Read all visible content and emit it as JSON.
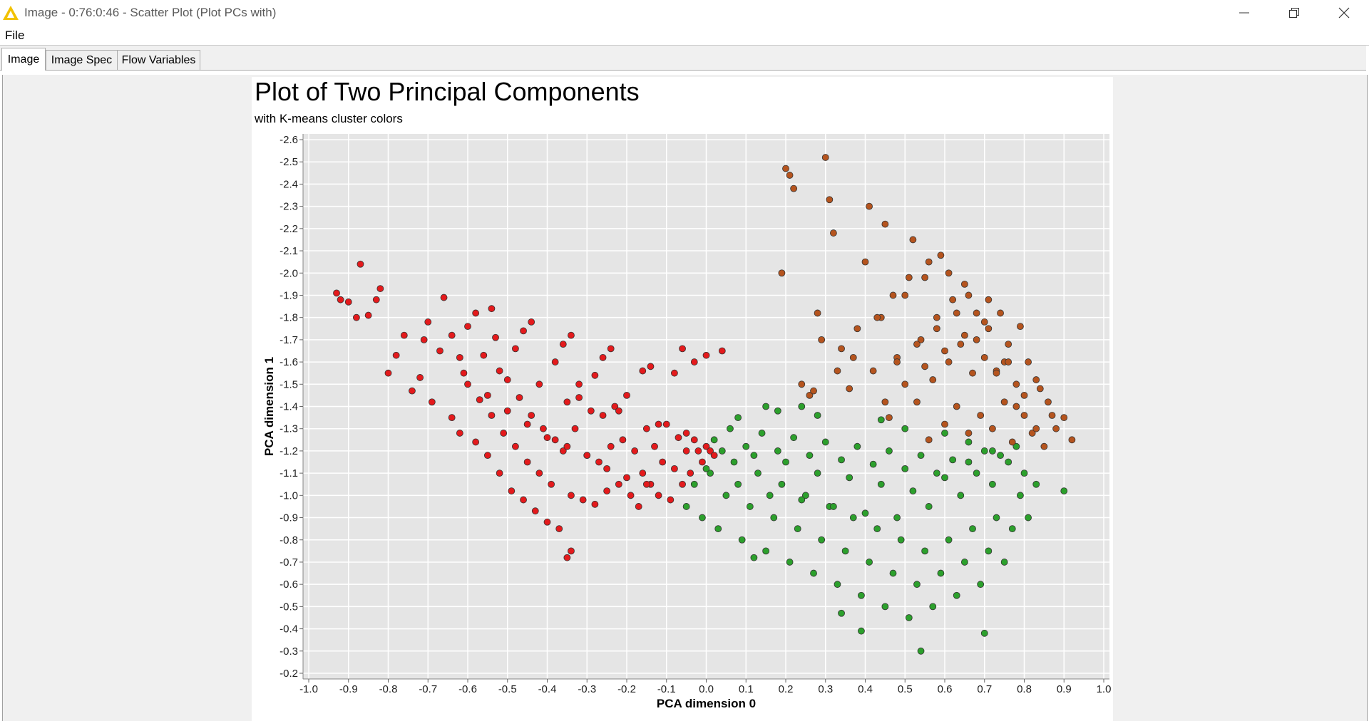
{
  "window": {
    "title": "Image - 0:76:0:46 - Scatter Plot (Plot PCs with)",
    "icon": "warning-triangle-icon",
    "controls": [
      "minimize-icon",
      "restore-icon",
      "close-icon"
    ]
  },
  "menu": {
    "file_label": "File"
  },
  "tabs": [
    {
      "label": "Image",
      "active": true
    },
    {
      "label": "Image Spec",
      "active": false
    },
    {
      "label": "Flow Variables",
      "active": false
    }
  ],
  "colors": {
    "cluster_red": "#e41a1c",
    "cluster_green": "#2ca02c",
    "cluster_brown": "#b5541e",
    "plot_background": "#e5e5e5"
  },
  "chart_data": {
    "type": "scatter",
    "title": "Plot of Two Principal Components",
    "subtitle": "with K-means cluster colors",
    "xlabel": "PCA dimension 0",
    "ylabel": "PCA dimension 1",
    "xlim": [
      -1.0,
      1.0
    ],
    "ylim": [
      -2.6,
      -0.2
    ],
    "x_ticks": [
      "-1.0",
      "-0.9",
      "-0.8",
      "-0.7",
      "-0.6",
      "-0.5",
      "-0.4",
      "-0.3",
      "-0.2",
      "-0.1",
      "0.0",
      "0.1",
      "0.2",
      "0.3",
      "0.4",
      "0.5",
      "0.6",
      "0.7",
      "0.8",
      "0.9",
      "1.0"
    ],
    "y_ticks": [
      "-0.2",
      "-0.3",
      "-0.4",
      "-0.5",
      "-0.6",
      "-0.7",
      "-0.8",
      "-0.9",
      "-1.0",
      "-1.1",
      "-1.2",
      "-1.3",
      "-1.4",
      "-1.5",
      "-1.6",
      "-1.7",
      "-1.8",
      "-1.9",
      "-2.0",
      "-2.1",
      "-2.2",
      "-2.3",
      "-2.4",
      "-2.5",
      "-2.6"
    ],
    "grid": true,
    "series": [
      {
        "color": "#e41a1c",
        "x": [
          -0.93,
          -0.92,
          -0.9,
          -0.87,
          -0.85,
          -0.82,
          -0.8,
          -0.78,
          -0.76,
          -0.74,
          -0.72,
          -0.71,
          -0.69,
          -0.67,
          -0.66,
          -0.64,
          -0.62,
          -0.61,
          -0.6,
          -0.58,
          -0.57,
          -0.56,
          -0.55,
          -0.54,
          -0.53,
          -0.52,
          -0.51,
          -0.5,
          -0.49,
          -0.48,
          -0.47,
          -0.46,
          -0.45,
          -0.44,
          -0.43,
          -0.42,
          -0.41,
          -0.4,
          -0.39,
          -0.38,
          -0.37,
          -0.36,
          -0.35,
          -0.34,
          -0.33,
          -0.32,
          -0.31,
          -0.3,
          -0.29,
          -0.28,
          -0.27,
          -0.26,
          -0.25,
          -0.24,
          -0.23,
          -0.22,
          -0.21,
          -0.2,
          -0.19,
          -0.18,
          -0.17,
          -0.16,
          -0.15,
          -0.14,
          -0.13,
          -0.12,
          -0.11,
          -0.1,
          -0.09,
          -0.08,
          -0.07,
          -0.06,
          -0.05,
          -0.04,
          -0.03,
          -0.02,
          -0.01,
          0.0,
          0.01,
          0.02,
          -0.6,
          -0.55,
          -0.5,
          -0.45,
          -0.4,
          -0.35,
          -0.3,
          -0.25,
          -0.2,
          -0.15,
          -0.62,
          -0.52,
          -0.42,
          -0.32,
          -0.22,
          -0.12,
          -0.05,
          -0.48,
          -0.38,
          -0.28,
          -0.58,
          -0.46,
          -0.36,
          -0.26,
          -0.16,
          -0.7,
          -0.64,
          -0.54,
          -0.44,
          -0.34,
          -0.24,
          -0.14,
          -0.06,
          -0.88,
          -0.83,
          -0.35,
          -0.34,
          -0.08,
          -0.03,
          0.04,
          0.0
        ],
        "y": [
          -1.91,
          -1.88,
          -1.87,
          -2.04,
          -1.81,
          -1.93,
          -1.55,
          -1.63,
          -1.72,
          -1.47,
          -1.53,
          -1.7,
          -1.42,
          -1.65,
          -1.89,
          -1.35,
          -1.28,
          -1.55,
          -1.76,
          -1.24,
          -1.43,
          -1.63,
          -1.18,
          -1.36,
          -1.71,
          -1.1,
          -1.28,
          -1.52,
          -1.02,
          -1.22,
          -1.44,
          -0.98,
          -1.15,
          -1.36,
          -0.93,
          -1.1,
          -1.3,
          -0.88,
          -1.05,
          -1.25,
          -0.85,
          -1.2,
          -1.42,
          -1.0,
          -1.3,
          -1.5,
          -0.98,
          -1.18,
          -1.38,
          -0.96,
          -1.15,
          -1.36,
          -1.02,
          -1.22,
          -1.4,
          -1.05,
          -1.25,
          -1.45,
          -1.0,
          -1.2,
          -0.95,
          -1.1,
          -1.3,
          -1.05,
          -1.22,
          -1.0,
          -1.15,
          -1.32,
          -0.98,
          -1.12,
          -1.26,
          -1.05,
          -1.2,
          -1.1,
          -1.25,
          -1.2,
          -1.15,
          -1.22,
          -1.2,
          -1.18,
          -1.5,
          -1.45,
          -1.38,
          -1.32,
          -1.26,
          -1.22,
          -1.18,
          -1.12,
          -1.08,
          -1.05,
          -1.62,
          -1.56,
          -1.5,
          -1.44,
          -1.38,
          -1.32,
          -1.28,
          -1.66,
          -1.6,
          -1.54,
          -1.82,
          -1.74,
          -1.68,
          -1.62,
          -1.56,
          -1.78,
          -1.72,
          -1.84,
          -1.78,
          -1.72,
          -1.66,
          -1.58,
          -1.66,
          -1.8,
          -1.88,
          -0.72,
          -0.75,
          -1.55,
          -1.6,
          -1.65,
          -1.63
        ]
      },
      {
        "color": "#2ca02c",
        "x": [
          -0.05,
          -0.03,
          -0.01,
          0.01,
          0.03,
          0.05,
          0.07,
          0.09,
          0.11,
          0.13,
          0.15,
          0.17,
          0.19,
          0.21,
          0.23,
          0.25,
          0.27,
          0.29,
          0.31,
          0.33,
          0.35,
          0.37,
          0.39,
          0.41,
          0.43,
          0.45,
          0.47,
          0.49,
          0.51,
          0.53,
          0.55,
          0.57,
          0.59,
          0.61,
          0.63,
          0.65,
          0.67,
          0.69,
          0.71,
          0.73,
          0.75,
          0.77,
          0.79,
          0.81,
          0.83,
          0.0,
          0.04,
          0.08,
          0.12,
          0.16,
          0.2,
          0.24,
          0.28,
          0.32,
          0.36,
          0.4,
          0.44,
          0.48,
          0.52,
          0.56,
          0.6,
          0.64,
          0.68,
          0.72,
          0.76,
          0.8,
          0.02,
          0.06,
          0.1,
          0.14,
          0.18,
          0.22,
          0.26,
          0.3,
          0.34,
          0.38,
          0.42,
          0.46,
          0.5,
          0.54,
          0.58,
          0.62,
          0.66,
          0.7,
          0.74,
          0.78,
          0.54,
          0.7,
          0.39,
          0.34,
          0.12,
          0.9,
          0.15,
          0.28,
          0.44,
          0.5,
          0.6,
          0.66,
          0.72,
          0.08,
          0.18,
          0.24
        ],
        "y": [
          -0.95,
          -1.05,
          -0.9,
          -1.1,
          -0.85,
          -1.0,
          -1.15,
          -0.8,
          -0.95,
          -1.1,
          -0.75,
          -0.9,
          -1.05,
          -0.7,
          -0.85,
          -1.0,
          -0.65,
          -0.8,
          -0.95,
          -0.6,
          -0.75,
          -0.9,
          -0.55,
          -0.7,
          -0.85,
          -0.5,
          -0.65,
          -0.8,
          -0.45,
          -0.6,
          -0.75,
          -0.5,
          -0.65,
          -0.8,
          -0.55,
          -0.7,
          -0.85,
          -0.6,
          -0.75,
          -0.9,
          -0.7,
          -0.85,
          -1.0,
          -0.9,
          -1.05,
          -1.12,
          -1.2,
          -1.05,
          -1.18,
          -1.0,
          -1.15,
          -0.98,
          -1.1,
          -0.95,
          -1.08,
          -0.92,
          -1.05,
          -0.9,
          -1.02,
          -0.95,
          -1.08,
          -1.0,
          -1.1,
          -1.05,
          -1.15,
          -1.1,
          -1.25,
          -1.3,
          -1.22,
          -1.28,
          -1.2,
          -1.26,
          -1.18,
          -1.24,
          -1.16,
          -1.22,
          -1.14,
          -1.2,
          -1.12,
          -1.18,
          -1.1,
          -1.16,
          -1.15,
          -1.2,
          -1.18,
          -1.22,
          -0.3,
          -0.38,
          -0.39,
          -0.47,
          -0.72,
          -1.02,
          -1.4,
          -1.36,
          -1.34,
          -1.3,
          -1.28,
          -1.24,
          -1.2,
          -1.35,
          -1.38,
          -1.4
        ]
      },
      {
        "color": "#b5541e",
        "x": [
          0.19,
          0.2,
          0.21,
          0.22,
          0.24,
          0.26,
          0.28,
          0.3,
          0.31,
          0.32,
          0.34,
          0.36,
          0.38,
          0.4,
          0.41,
          0.42,
          0.44,
          0.45,
          0.46,
          0.48,
          0.5,
          0.52,
          0.53,
          0.54,
          0.55,
          0.56,
          0.57,
          0.58,
          0.59,
          0.6,
          0.61,
          0.62,
          0.63,
          0.64,
          0.65,
          0.66,
          0.67,
          0.68,
          0.69,
          0.7,
          0.71,
          0.72,
          0.73,
          0.74,
          0.75,
          0.76,
          0.77,
          0.78,
          0.79,
          0.8,
          0.81,
          0.82,
          0.83,
          0.84,
          0.85,
          0.86,
          0.87,
          0.88,
          0.92,
          0.9,
          0.45,
          0.5,
          0.55,
          0.6,
          0.65,
          0.7,
          0.75,
          0.8,
          0.48,
          0.53,
          0.58,
          0.63,
          0.68,
          0.73,
          0.78,
          0.83,
          0.43,
          0.47,
          0.51,
          0.56,
          0.61,
          0.66,
          0.71,
          0.76,
          0.27,
          0.29,
          0.33,
          0.37
        ],
        "y": [
          -2.0,
          -2.47,
          -2.44,
          -2.38,
          -1.5,
          -1.45,
          -1.82,
          -2.52,
          -2.33,
          -2.18,
          -1.66,
          -1.48,
          -1.75,
          -2.05,
          -2.3,
          -1.56,
          -1.8,
          -2.22,
          -1.35,
          -1.62,
          -1.9,
          -2.15,
          -1.42,
          -1.7,
          -1.98,
          -1.25,
          -1.52,
          -1.8,
          -2.08,
          -1.32,
          -1.6,
          -1.88,
          -1.4,
          -1.68,
          -1.95,
          -1.28,
          -1.55,
          -1.82,
          -1.36,
          -1.62,
          -1.88,
          -1.3,
          -1.56,
          -1.82,
          -1.42,
          -1.68,
          -1.24,
          -1.5,
          -1.76,
          -1.36,
          -1.6,
          -1.28,
          -1.52,
          -1.48,
          -1.22,
          -1.42,
          -1.36,
          -1.3,
          -1.25,
          -1.35,
          -1.42,
          -1.5,
          -1.58,
          -1.65,
          -1.72,
          -1.78,
          -1.6,
          -1.45,
          -1.6,
          -1.68,
          -1.75,
          -1.82,
          -1.7,
          -1.55,
          -1.4,
          -1.3,
          -1.8,
          -1.9,
          -1.98,
          -2.05,
          -2.0,
          -1.9,
          -1.75,
          -1.6,
          -1.47,
          -1.7,
          -1.56,
          -1.62
        ]
      }
    ]
  }
}
